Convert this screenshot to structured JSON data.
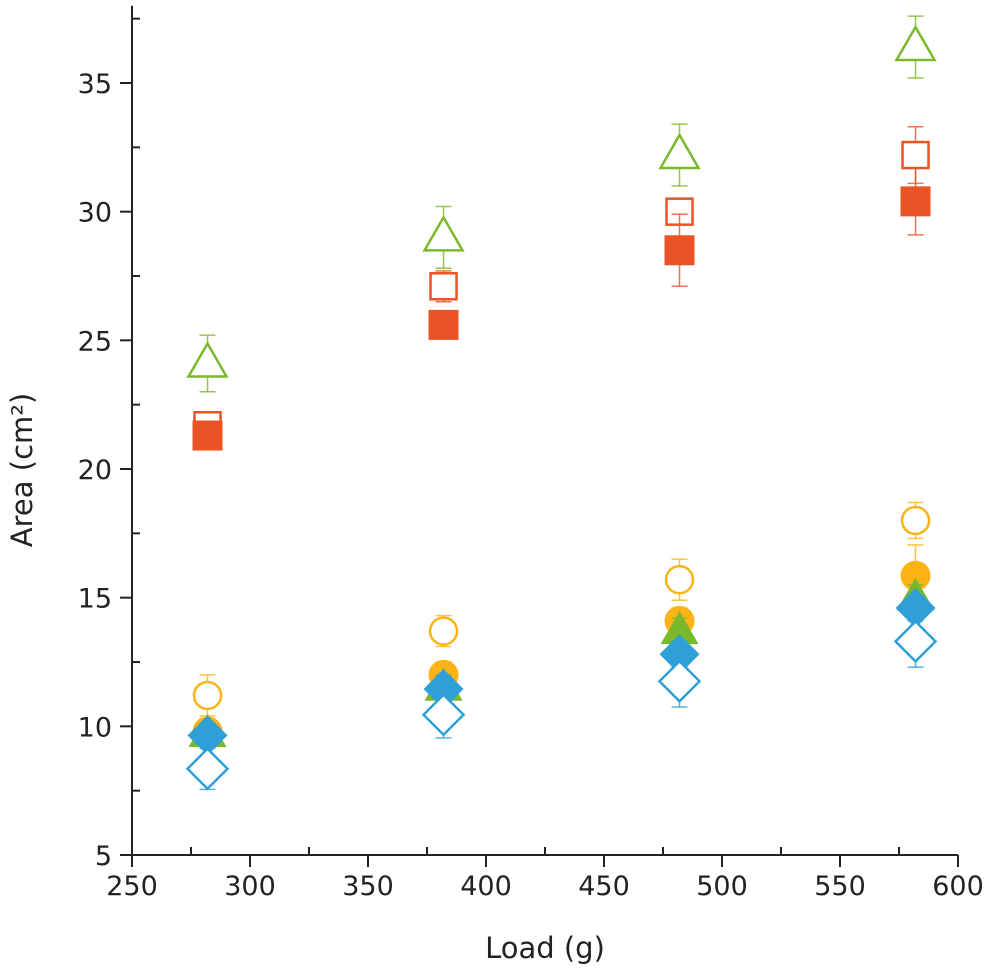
{
  "chart_data": {
    "type": "scatter",
    "title": "",
    "xlabel": "Load (g)",
    "ylabel": "Area (cm²)",
    "xlim": [
      250,
      600
    ],
    "ylim": [
      5,
      38
    ],
    "xticks": [
      250,
      300,
      350,
      400,
      450,
      500,
      550,
      600
    ],
    "yticks": [
      5,
      10,
      15,
      20,
      25,
      30,
      35
    ],
    "xtick_labels": [
      "250",
      "300",
      "350",
      "400",
      "450",
      "500",
      "550",
      "600"
    ],
    "ytick_labels": [
      "5",
      "10",
      "15",
      "20",
      "25",
      "30",
      "35"
    ],
    "grid": false,
    "legend": "none",
    "x": [
      282,
      382,
      482,
      582
    ],
    "series": [
      {
        "name": "open-triangle",
        "marker": "triangle",
        "filled": false,
        "color": "#7ab929",
        "values": [
          24.1,
          29.0,
          32.2,
          36.4
        ],
        "errors": [
          1.1,
          1.2,
          1.2,
          1.2
        ]
      },
      {
        "name": "open-square",
        "marker": "square",
        "filled": false,
        "color": "#e95325",
        "values": [
          21.7,
          27.1,
          30.0,
          32.2
        ],
        "errors": [
          0.5,
          0.6,
          0.4,
          1.1
        ]
      },
      {
        "name": "filled-square",
        "marker": "square",
        "filled": true,
        "color": "#e95325",
        "values": [
          21.3,
          25.6,
          28.5,
          30.4
        ],
        "errors": [
          0.4,
          0.5,
          1.4,
          1.3
        ]
      },
      {
        "name": "open-circle",
        "marker": "circle",
        "filled": false,
        "color": "#fbb316",
        "values": [
          11.2,
          13.7,
          15.7,
          18.0
        ],
        "errors": [
          0.8,
          0.6,
          0.8,
          0.7
        ]
      },
      {
        "name": "filled-circle",
        "marker": "circle",
        "filled": true,
        "color": "#fbb316",
        "values": [
          9.8,
          12.0,
          14.1,
          15.85
        ],
        "errors": [
          0.5,
          0.5,
          0.5,
          1.2
        ]
      },
      {
        "name": "filled-triangle",
        "marker": "triangle",
        "filled": true,
        "color": "#7ab929",
        "values": [
          9.7,
          11.5,
          13.7,
          15.0
        ],
        "errors": [
          0.4,
          0.5,
          0.5,
          0.5
        ]
      },
      {
        "name": "filled-diamond",
        "marker": "diamond",
        "filled": true,
        "color": "#2f9fd8",
        "values": [
          9.65,
          11.45,
          12.8,
          14.6
        ],
        "errors": [
          0.4,
          0.5,
          0.5,
          0.5
        ]
      },
      {
        "name": "open-diamond",
        "marker": "diamond",
        "filled": false,
        "color": "#2f9fd8",
        "values": [
          8.35,
          10.45,
          11.75,
          13.3
        ],
        "errors": [
          0.8,
          0.9,
          1.0,
          1.0
        ]
      }
    ]
  }
}
